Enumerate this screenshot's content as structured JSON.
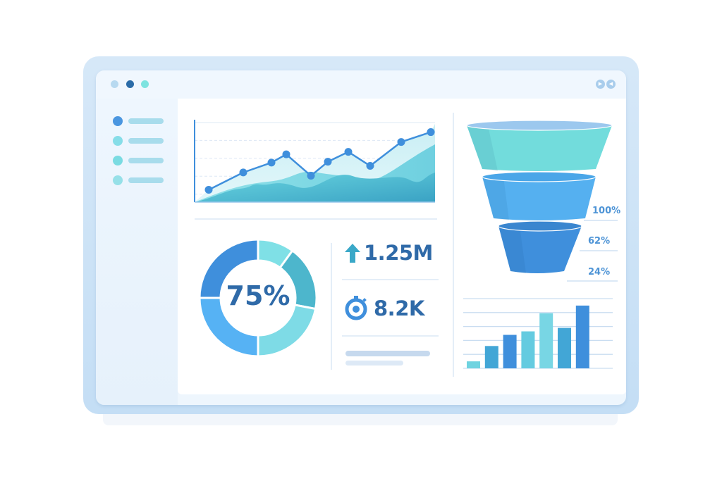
{
  "window": {
    "dots": [
      {
        "color": "#b7d9f0"
      },
      {
        "color": "#2b6ca8"
      },
      {
        "color": "#7de3e0"
      }
    ],
    "controls": [
      {
        "icon": "play-icon",
        "glyph": "▶"
      },
      {
        "icon": "rewind-icon",
        "glyph": "◀"
      }
    ]
  },
  "sidebar": {
    "items": [
      {
        "color": "#4a96e0"
      },
      {
        "color": "#86dde8"
      },
      {
        "color": "#7adbe2"
      },
      {
        "color": "#96e0e8"
      }
    ]
  },
  "kpis": {
    "revenue": {
      "icon": "arrow-up-icon",
      "value": "1.25M"
    },
    "timer": {
      "icon": "stopwatch-icon",
      "value": "8.2K"
    }
  },
  "colors": {
    "accent": "#3f8fdc",
    "teal": "#6fd9dd",
    "dark_blue": "#2f6aa8"
  },
  "chart_data": [
    {
      "type": "line",
      "grid": true,
      "values": [
        15,
        36,
        48,
        58,
        32,
        49,
        61,
        44,
        73,
        85
      ],
      "ylim": [
        0,
        100
      ]
    },
    {
      "type": "pie",
      "center_label": "75%",
      "values": [
        10,
        18,
        22,
        25,
        25
      ],
      "colors": [
        "#7fe0e6",
        "#4db6cc",
        "#7edbe6",
        "#56b2f4",
        "#3f8fdc"
      ]
    },
    {
      "type": "funnel",
      "labels": [
        "100%",
        "62%",
        "24%"
      ],
      "colors": [
        "#72dcdc",
        "#55b0f0",
        "#3f8fdc"
      ]
    },
    {
      "type": "bar",
      "grid": true,
      "values": [
        0.5,
        1.6,
        2.4,
        2.65,
        3.95,
        2.9,
        4.5
      ],
      "ylim": [
        0,
        5
      ],
      "colors": [
        "#6fd3e0",
        "#42a6d6",
        "#3f8fdc",
        "#64cbe0",
        "#78d6e4",
        "#42a6d6",
        "#3f8fdc"
      ]
    }
  ]
}
